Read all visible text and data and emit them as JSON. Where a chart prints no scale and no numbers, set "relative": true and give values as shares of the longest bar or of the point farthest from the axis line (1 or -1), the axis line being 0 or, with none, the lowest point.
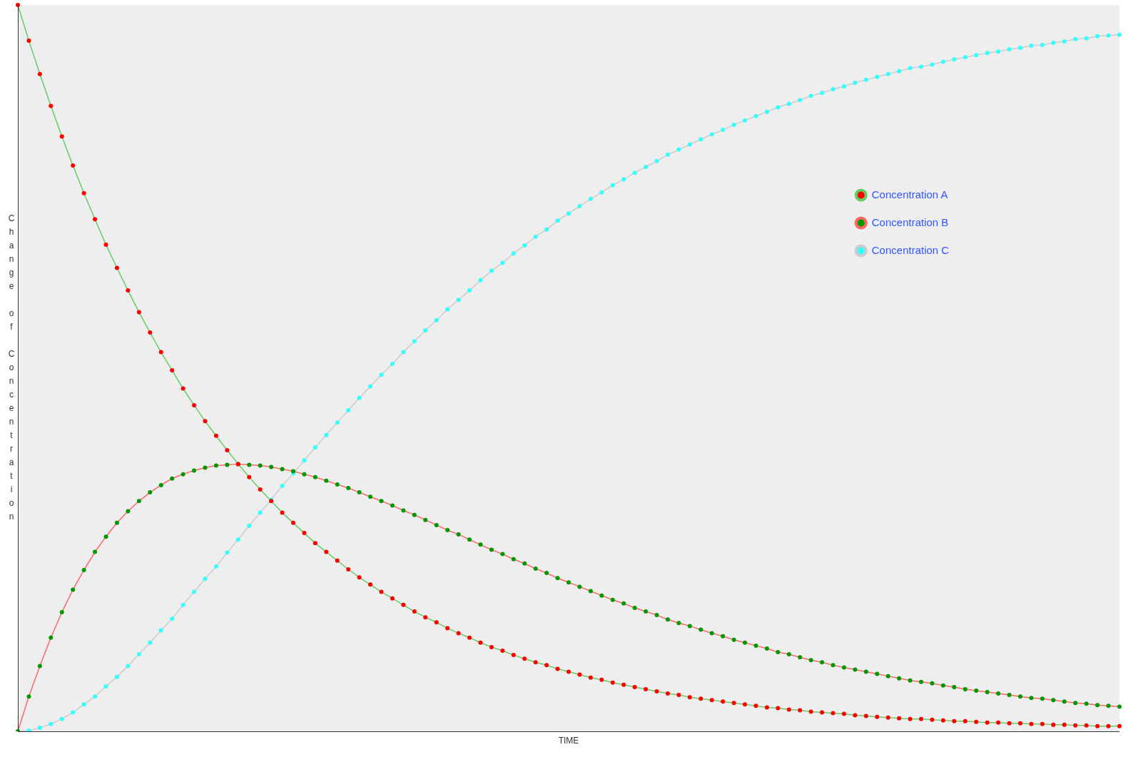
{
  "chart_data": {
    "type": "line",
    "relative": true,
    "xlabel": "TIME",
    "ylabel": "Change of Concentration",
    "legend": "top right",
    "marker": "circle",
    "line_style": "solid",
    "grid": false,
    "categories": [
      null,
      null,
      null,
      null,
      null,
      null,
      null,
      null,
      null,
      null,
      null,
      null,
      null,
      null,
      null,
      null,
      null,
      null,
      null,
      null,
      null,
      null,
      null,
      null,
      null,
      null,
      null,
      null,
      null,
      null,
      null,
      null,
      null,
      null,
      null,
      null,
      null,
      null,
      null,
      null,
      null,
      null,
      null,
      null,
      null,
      null,
      null,
      null,
      null,
      null,
      null,
      null,
      null,
      null,
      null,
      null,
      null,
      null,
      null,
      null,
      null,
      null,
      null,
      null,
      null,
      null,
      null,
      null,
      null,
      null,
      null,
      null,
      null,
      null,
      null,
      null,
      null,
      null,
      null,
      null,
      null,
      null,
      null,
      null,
      null,
      null,
      null,
      null,
      null,
      null,
      null,
      null,
      null,
      null,
      null,
      null,
      null,
      null,
      null,
      null,
      null
    ],
    "series": [
      {
        "name": "Concentration A",
        "color": "#66cc66",
        "colors": [
          "#ff0000",
          "#ff0000",
          "#ff0000",
          "#ff0000",
          "#ff0000",
          "#ff0000",
          "#ff0000",
          "#ff0000",
          "#ff0000",
          "#ff0000",
          "#ff0000",
          "#ff0000",
          "#ff0000",
          "#ff0000",
          "#ff0000",
          "#ff0000",
          "#ff0000",
          "#ff0000",
          "#ff0000",
          "#ff0000",
          "#ff0000",
          "#ff0000",
          "#ff0000",
          "#ff0000",
          "#ff0000",
          "#ff0000",
          "#ff0000",
          "#ff0000",
          "#ff0000",
          "#ff0000",
          "#ff0000",
          "#ff0000",
          "#ff0000",
          "#ff0000",
          "#ff0000",
          "#ff0000",
          "#ff0000",
          "#ff0000",
          "#ff0000",
          "#ff0000",
          "#ff0000",
          "#ff0000",
          "#ff0000",
          "#ff0000",
          "#ff0000",
          "#ff0000",
          "#ff0000",
          "#ff0000",
          "#ff0000",
          "#ff0000",
          "#ff0000",
          "#ff0000",
          "#ff0000",
          "#ff0000",
          "#ff0000",
          "#ff0000",
          "#ff0000",
          "#ff0000",
          "#ff0000",
          "#ff0000",
          "#ff0000",
          "#ff0000",
          "#ff0000",
          "#ff0000",
          "#ff0000",
          "#ff0000",
          "#ff0000",
          "#ff0000",
          "#ff0000",
          "#ff0000",
          "#ff0000",
          "#ff0000",
          "#ff0000",
          "#ff0000",
          "#ff0000",
          "#ff0000",
          "#ff0000",
          "#ff0000",
          "#ff0000",
          "#ff0000",
          "#ff0000",
          "#ff0000",
          "#ff0000",
          "#ff0000",
          "#ff0000",
          "#ff0000",
          "#ff0000",
          "#ff0000",
          "#ff0000",
          "#ff0000",
          "#ff0000",
          "#ff0000",
          "#ff0000",
          "#ff0000",
          "#ff0000",
          "#ff0000",
          "#ff0000",
          "#ff0000",
          "#ff0000",
          "#ff0000",
          "#ff0000"
        ],
        "values": [
          1.0,
          0.951,
          0.905,
          0.861,
          0.819,
          0.779,
          0.741,
          0.705,
          0.67,
          0.638,
          0.607,
          0.577,
          0.549,
          0.522,
          0.497,
          0.472,
          0.449,
          0.427,
          0.407,
          0.387,
          0.368,
          0.35,
          0.333,
          0.317,
          0.301,
          0.287,
          0.273,
          0.259,
          0.247,
          0.235,
          0.223,
          0.212,
          0.202,
          0.192,
          0.183,
          0.174,
          0.165,
          0.157,
          0.15,
          0.142,
          0.135,
          0.129,
          0.122,
          0.116,
          0.111,
          0.105,
          0.1,
          0.095,
          0.091,
          0.086,
          0.082,
          0.078,
          0.074,
          0.071,
          0.067,
          0.064,
          0.061,
          0.058,
          0.055,
          0.052,
          0.05,
          0.047,
          0.045,
          0.043,
          0.041,
          0.039,
          0.037,
          0.035,
          0.033,
          0.032,
          0.03,
          0.029,
          0.027,
          0.026,
          0.025,
          0.024,
          0.022,
          0.021,
          0.02,
          0.019,
          0.018,
          0.017,
          0.017,
          0.016,
          0.015,
          0.014,
          0.014,
          0.013,
          0.012,
          0.012,
          0.011,
          0.011,
          0.01,
          0.01,
          0.009,
          0.009,
          0.008,
          0.008,
          0.007,
          0.007,
          0.007
        ]
      },
      {
        "name": "Concentration B",
        "color": "#ff6666",
        "colors": [
          "#009900",
          "#009900",
          "#009900",
          "#009900",
          "#009900",
          "#009900",
          "#009900",
          "#009900",
          "#009900",
          "#009900",
          "#009900",
          "#009900",
          "#009900",
          "#009900",
          "#009900",
          "#009900",
          "#009900",
          "#009900",
          "#009900",
          "#009900",
          "#009900",
          "#009900",
          "#009900",
          "#009900",
          "#009900",
          "#009900",
          "#009900",
          "#009900",
          "#009900",
          "#009900",
          "#009900",
          "#009900",
          "#009900",
          "#009900",
          "#009900",
          "#009900",
          "#009900",
          "#009900",
          "#009900",
          "#009900",
          "#009900",
          "#009900",
          "#009900",
          "#009900",
          "#009900",
          "#009900",
          "#009900",
          "#009900",
          "#009900",
          "#009900",
          "#009900",
          "#009900",
          "#009900",
          "#009900",
          "#009900",
          "#009900",
          "#009900",
          "#009900",
          "#009900",
          "#009900",
          "#009900",
          "#009900",
          "#009900",
          "#009900",
          "#009900",
          "#009900",
          "#009900",
          "#009900",
          "#009900",
          "#009900",
          "#009900",
          "#009900",
          "#009900",
          "#009900",
          "#009900",
          "#009900",
          "#009900",
          "#009900",
          "#009900",
          "#009900",
          "#009900",
          "#009900",
          "#009900",
          "#009900",
          "#009900",
          "#009900",
          "#009900",
          "#009900",
          "#009900",
          "#009900",
          "#009900",
          "#009900",
          "#009900",
          "#009900",
          "#009900",
          "#009900",
          "#009900",
          "#009900",
          "#009900",
          "#009900",
          "#009900"
        ],
        "values": [
          0,
          0.048,
          0.09,
          0.129,
          0.164,
          0.195,
          0.222,
          0.247,
          0.268,
          0.287,
          0.303,
          0.317,
          0.329,
          0.339,
          0.348,
          0.354,
          0.359,
          0.363,
          0.366,
          0.367,
          0.368,
          0.367,
          0.366,
          0.364,
          0.361,
          0.358,
          0.354,
          0.35,
          0.345,
          0.34,
          0.335,
          0.329,
          0.323,
          0.317,
          0.311,
          0.304,
          0.298,
          0.291,
          0.284,
          0.277,
          0.271,
          0.264,
          0.257,
          0.25,
          0.244,
          0.237,
          0.231,
          0.224,
          0.218,
          0.211,
          0.205,
          0.199,
          0.193,
          0.187,
          0.181,
          0.176,
          0.17,
          0.165,
          0.16,
          0.154,
          0.149,
          0.145,
          0.14,
          0.135,
          0.131,
          0.126,
          0.122,
          0.118,
          0.114,
          0.109,
          0.106,
          0.102,
          0.098,
          0.095,
          0.091,
          0.088,
          0.085,
          0.082,
          0.079,
          0.076,
          0.073,
          0.07,
          0.068,
          0.066,
          0.063,
          0.061,
          0.058,
          0.056,
          0.054,
          0.052,
          0.05,
          0.048,
          0.046,
          0.045,
          0.043,
          0.041,
          0.039,
          0.038,
          0.036,
          0.035,
          0.034
        ]
      },
      {
        "name": "Concentration C",
        "color": "#cccccc",
        "colors": [
          "#33ffff",
          "#33ffff",
          "#33ffff",
          "#33ffff",
          "#33ffff",
          "#33ffff",
          "#33ffff",
          "#33ffff",
          "#33ffff",
          "#33ffff",
          "#33ffff",
          "#33ffff",
          "#33ffff",
          "#33ffff",
          "#33ffff",
          "#33ffff",
          "#33ffff",
          "#33ffff",
          "#33ffff",
          "#33ffff",
          "#33ffff",
          "#33ffff",
          "#33ffff",
          "#33ffff",
          "#33ffff",
          "#33ffff",
          "#33ffff",
          "#33ffff",
          "#33ffff",
          "#33ffff",
          "#33ffff",
          "#33ffff",
          "#33ffff",
          "#33ffff",
          "#33ffff",
          "#33ffff",
          "#33ffff",
          "#33ffff",
          "#33ffff",
          "#33ffff",
          "#33ffff",
          "#33ffff",
          "#33ffff",
          "#33ffff",
          "#33ffff",
          "#33ffff",
          "#33ffff",
          "#33ffff",
          "#33ffff",
          "#33ffff",
          "#33ffff",
          "#33ffff",
          "#33ffff",
          "#33ffff",
          "#33ffff",
          "#33ffff",
          "#33ffff",
          "#33ffff",
          "#33ffff",
          "#33ffff",
          "#33ffff",
          "#33ffff",
          "#33ffff",
          "#33ffff",
          "#33ffff",
          "#33ffff",
          "#33ffff",
          "#33ffff",
          "#33ffff",
          "#33ffff",
          "#33ffff",
          "#33ffff",
          "#33ffff",
          "#33ffff",
          "#33ffff",
          "#33ffff",
          "#33ffff",
          "#33ffff",
          "#33ffff",
          "#33ffff",
          "#33ffff",
          "#33ffff",
          "#33ffff",
          "#33ffff",
          "#33ffff",
          "#33ffff",
          "#33ffff",
          "#33ffff",
          "#33ffff",
          "#33ffff",
          "#33ffff",
          "#33ffff",
          "#33ffff",
          "#33ffff",
          "#33ffff",
          "#33ffff",
          "#33ffff",
          "#33ffff",
          "#33ffff",
          "#33ffff",
          "#33ffff"
        ],
        "values": [
          0,
          0.001,
          0.005,
          0.01,
          0.017,
          0.026,
          0.037,
          0.048,
          0.062,
          0.075,
          0.09,
          0.106,
          0.122,
          0.139,
          0.155,
          0.174,
          0.192,
          0.21,
          0.227,
          0.246,
          0.264,
          0.283,
          0.301,
          0.319,
          0.338,
          0.355,
          0.373,
          0.391,
          0.408,
          0.425,
          0.442,
          0.459,
          0.475,
          0.491,
          0.506,
          0.522,
          0.537,
          0.552,
          0.566,
          0.581,
          0.594,
          0.607,
          0.621,
          0.634,
          0.645,
          0.658,
          0.669,
          0.681,
          0.691,
          0.703,
          0.713,
          0.723,
          0.733,
          0.742,
          0.752,
          0.76,
          0.769,
          0.777,
          0.785,
          0.794,
          0.801,
          0.808,
          0.815,
          0.822,
          0.828,
          0.835,
          0.841,
          0.847,
          0.853,
          0.859,
          0.864,
          0.869,
          0.875,
          0.879,
          0.884,
          0.888,
          0.893,
          0.897,
          0.901,
          0.905,
          0.909,
          0.913,
          0.915,
          0.918,
          0.922,
          0.925,
          0.928,
          0.931,
          0.934,
          0.936,
          0.939,
          0.941,
          0.944,
          0.945,
          0.948,
          0.95,
          0.953,
          0.954,
          0.957,
          0.958,
          0.959
        ]
      }
    ]
  }
}
